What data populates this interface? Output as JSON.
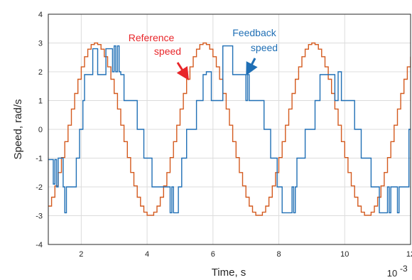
{
  "chart_data": {
    "type": "line",
    "xlabel": "Time, s",
    "ylabel": "Speed, rad/s",
    "x_multiplier_label": "10",
    "x_multiplier_exponent": "-3",
    "xlim": [
      1,
      12
    ],
    "ylim": [
      -4,
      4
    ],
    "x_ticks": [
      "2",
      "4",
      "6",
      "8",
      "10",
      "12"
    ],
    "y_ticks": [
      "4",
      "3",
      "2",
      "1",
      "0",
      "-1",
      "-2",
      "-3",
      "-4"
    ],
    "grid": true,
    "annotations": [
      {
        "text": "Reference",
        "color": "#e8262a"
      },
      {
        "text": "speed",
        "color": "#e8262a"
      },
      {
        "text": "Feedback",
        "color": "#1f6fb5"
      },
      {
        "text": "speed",
        "color": "#1f6fb5"
      }
    ],
    "series": [
      {
        "color": "#d45a1e",
        "style": "staircase sinusoid",
        "amplitude": 3,
        "period": 3.3,
        "phase_peak_x": 2.45,
        "step_dx": 0.1,
        "x_range": [
          1,
          12
        ]
      },
      {
        "color": "#1f6fb5",
        "style": "quantized step",
        "x": [
          1.0,
          1.15,
          1.2,
          1.25,
          1.3,
          1.45,
          1.5,
          1.55,
          1.6,
          1.85,
          1.95,
          2.05,
          2.1,
          2.2,
          2.35,
          2.5,
          2.75,
          2.95,
          3.0,
          3.05,
          3.1,
          3.15,
          3.2,
          3.25,
          3.3,
          3.7,
          3.9,
          4.15,
          4.4,
          4.7,
          4.75,
          4.8,
          4.95,
          5.05,
          5.2,
          5.5,
          5.7,
          5.8,
          5.95,
          6.3,
          6.45,
          6.6,
          6.95,
          7.0,
          7.05,
          7.1,
          7.55,
          7.75,
          7.95,
          8.1,
          8.4,
          8.45,
          8.5,
          8.55,
          8.8,
          9.1,
          9.25,
          9.4,
          9.7,
          9.8,
          9.9,
          10.3,
          10.5,
          10.8,
          11.05,
          11.3,
          11.35,
          11.4,
          11.55,
          11.6,
          11.65,
          11.8,
          11.95,
          12.0
        ],
        "y": [
          -1.05,
          -1.9,
          -1.05,
          -2.0,
          -1.0,
          -2.0,
          -2.9,
          -2.0,
          -2.0,
          -1.0,
          0.0,
          1.0,
          1.9,
          1.9,
          2.8,
          1.9,
          2.8,
          2.0,
          2.9,
          2.0,
          2.9,
          2.0,
          1.9,
          1.9,
          1.0,
          0.0,
          -1.0,
          -2.0,
          -2.0,
          -2.9,
          -2.0,
          -2.9,
          -2.0,
          -1.0,
          0.0,
          1.0,
          1.9,
          2.0,
          1.0,
          2.9,
          2.9,
          1.9,
          1.9,
          1.0,
          1.9,
          1.0,
          0.0,
          -1.0,
          -2.0,
          -2.9,
          -2.0,
          -2.9,
          -2.0,
          -1.0,
          0.0,
          1.0,
          1.9,
          1.9,
          1.0,
          2.0,
          1.0,
          0.0,
          -1.0,
          -2.0,
          -2.9,
          -2.0,
          -2.9,
          -2.0,
          -2.0,
          -2.9,
          -2.0,
          -2.0,
          0.0,
          0.0
        ]
      }
    ]
  }
}
